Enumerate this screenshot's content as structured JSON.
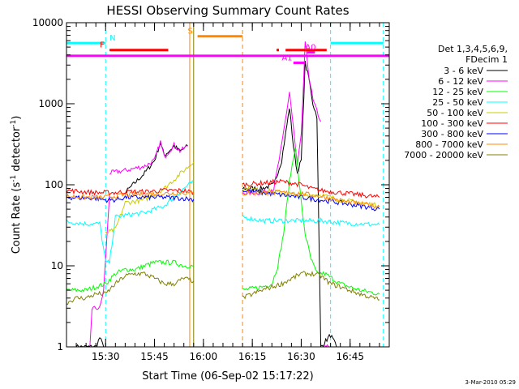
{
  "chart_data": {
    "type": "line",
    "title": "HESSI Observing Summary Count Rates",
    "xlabel": "Start Time (06-Sep-02 15:17:22)",
    "ylabel": "Count Rate (s",
    "ylabel_sup": "-1",
    "ylabel_end": " detector",
    "ylabel_sup2": "-1",
    "ylabel_close": ")",
    "yscale": "log",
    "ylim": [
      1,
      10000
    ],
    "xlim_minutes": [
      15.3,
      16.95
    ],
    "x_ticks": [
      {
        "label": "15:30",
        "value": 15.5
      },
      {
        "label": "15:45",
        "value": 15.75
      },
      {
        "label": "16:00",
        "value": 16.0
      },
      {
        "label": "16:15",
        "value": 16.25
      },
      {
        "label": "16:30",
        "value": 16.5
      },
      {
        "label": "16:45",
        "value": 16.75
      }
    ],
    "y_ticks": [
      {
        "label": "1",
        "value": 1
      },
      {
        "label": "10",
        "value": 10
      },
      {
        "label": "100",
        "value": 100
      },
      {
        "label": "1000",
        "value": 1000
      },
      {
        "label": "10000",
        "value": 10000
      }
    ],
    "legend": {
      "header1": "Det 1,3,4,5,6,9,",
      "header2": "FDecim 1",
      "placement": "right"
    },
    "series": [
      {
        "name": "3 - 6 keV",
        "color": "#000000",
        "segments": [
          [
            [
              15.35,
              1
            ],
            [
              15.45,
              1
            ],
            [
              15.47,
              1.3
            ],
            [
              15.49,
              1
            ]
          ],
          [
            [
              15.6,
              80
            ],
            [
              15.7,
              140
            ],
            [
              15.75,
              200
            ],
            [
              15.78,
              330
            ],
            [
              15.8,
              230
            ],
            [
              15.85,
              300
            ],
            [
              15.88,
              260
            ],
            [
              15.92,
              300
            ]
          ],
          [
            [
              16.2,
              90
            ],
            [
              16.3,
              90
            ],
            [
              16.36,
              100
            ],
            [
              16.4,
              200
            ],
            [
              16.44,
              900
            ],
            [
              16.46,
              300
            ],
            [
              16.48,
              140
            ],
            [
              16.5,
              200
            ],
            [
              16.52,
              3200
            ],
            [
              16.54,
              2000
            ],
            [
              16.56,
              1000
            ],
            [
              16.58,
              700
            ],
            [
              16.6,
              1
            ]
          ],
          [
            [
              16.6,
              1
            ],
            [
              16.65,
              1.4
            ],
            [
              16.68,
              1
            ]
          ]
        ]
      },
      {
        "name": "6 - 12 keV",
        "color": "#ff00ff",
        "segments": [
          [
            [
              15.42,
              1
            ],
            [
              15.43,
              3
            ],
            [
              15.47,
              3
            ],
            [
              15.49,
              5
            ],
            [
              15.52,
              75
            ]
          ],
          [
            [
              15.52,
              140
            ],
            [
              15.6,
              150
            ],
            [
              15.7,
              170
            ],
            [
              15.75,
              200
            ],
            [
              15.78,
              340
            ],
            [
              15.8,
              220
            ],
            [
              15.85,
              310
            ],
            [
              15.88,
              260
            ],
            [
              15.92,
              300
            ]
          ],
          [
            [
              16.2,
              80
            ],
            [
              16.3,
              80
            ],
            [
              16.36,
              90
            ],
            [
              16.4,
              300
            ],
            [
              16.44,
              1400
            ],
            [
              16.46,
              500
            ],
            [
              16.48,
              170
            ],
            [
              16.5,
              400
            ],
            [
              16.52,
              5500
            ],
            [
              16.54,
              2200
            ],
            [
              16.56,
              1100
            ],
            [
              16.6,
              600
            ]
          ],
          [
            [
              16.62,
              1
            ],
            [
              16.64,
              1
            ]
          ]
        ]
      },
      {
        "name": "12 - 25 keV",
        "color": "#00ff00",
        "segments": [
          [
            [
              15.3,
              5
            ],
            [
              15.35,
              5
            ],
            [
              15.4,
              5
            ],
            [
              15.45,
              5.5
            ],
            [
              15.5,
              6
            ],
            [
              15.55,
              8
            ],
            [
              15.6,
              9
            ],
            [
              15.65,
              9
            ],
            [
              15.7,
              10
            ],
            [
              15.75,
              11
            ],
            [
              15.8,
              11
            ],
            [
              15.85,
              11
            ],
            [
              15.9,
              10
            ],
            [
              15.95,
              10
            ]
          ],
          [
            [
              16.2,
              5
            ],
            [
              16.3,
              5.5
            ],
            [
              16.35,
              6
            ],
            [
              16.38,
              10
            ],
            [
              16.41,
              25
            ],
            [
              16.44,
              110
            ],
            [
              16.47,
              300
            ],
            [
              16.5,
              60
            ],
            [
              16.52,
              25
            ],
            [
              16.55,
              12
            ],
            [
              16.58,
              8
            ],
            [
              16.62,
              8
            ],
            [
              16.7,
              6
            ],
            [
              16.8,
              5
            ],
            [
              16.9,
              4.5
            ]
          ]
        ]
      },
      {
        "name": "25 - 50 keV",
        "color": "#00ffff",
        "segments": [
          [
            [
              15.3,
              35
            ],
            [
              15.4,
              33
            ],
            [
              15.47,
              33
            ],
            [
              15.5,
              11
            ],
            [
              15.52,
              11
            ],
            [
              15.55,
              40
            ],
            [
              15.6,
              42
            ],
            [
              15.7,
              45
            ],
            [
              15.8,
              55
            ],
            [
              15.9,
              90
            ],
            [
              15.95,
              110
            ]
          ],
          [
            [
              16.2,
              40
            ],
            [
              16.3,
              36
            ],
            [
              16.4,
              36
            ],
            [
              16.5,
              36
            ],
            [
              16.6,
              36
            ],
            [
              16.7,
              34
            ],
            [
              16.8,
              33
            ],
            [
              16.9,
              32
            ]
          ]
        ]
      },
      {
        "name": "50 - 100 keV",
        "color": "#cccc00",
        "segments": [
          [
            [
              15.5,
              25
            ],
            [
              15.55,
              28
            ],
            [
              15.6,
              60
            ],
            [
              15.7,
              65
            ],
            [
              15.8,
              90
            ],
            [
              15.9,
              150
            ],
            [
              15.95,
              190
            ]
          ],
          [
            [
              16.2,
              90
            ],
            [
              16.3,
              85
            ],
            [
              16.4,
              80
            ],
            [
              16.5,
              75
            ],
            [
              16.6,
              75
            ],
            [
              16.7,
              65
            ],
            [
              16.8,
              60
            ],
            [
              16.9,
              55
            ]
          ]
        ]
      },
      {
        "name": "100 - 300 keV",
        "color": "#ff0000",
        "segments": [
          [
            [
              15.3,
              85
            ],
            [
              15.45,
              80
            ],
            [
              15.5,
              80
            ],
            [
              15.55,
              80
            ],
            [
              15.6,
              82
            ],
            [
              15.7,
              82
            ],
            [
              15.8,
              85
            ],
            [
              15.9,
              85
            ],
            [
              15.95,
              80
            ]
          ],
          [
            [
              16.2,
              100
            ],
            [
              16.3,
              105
            ],
            [
              16.4,
              110
            ],
            [
              16.5,
              100
            ],
            [
              16.55,
              90
            ],
            [
              16.6,
              85
            ],
            [
              16.7,
              80
            ],
            [
              16.8,
              75
            ],
            [
              16.9,
              70
            ]
          ]
        ]
      },
      {
        "name": "300 - 800 keV",
        "color": "#0000ff",
        "segments": [
          [
            [
              15.3,
              70
            ],
            [
              15.45,
              68
            ],
            [
              15.5,
              65
            ],
            [
              15.55,
              65
            ],
            [
              15.6,
              70
            ],
            [
              15.7,
              70
            ],
            [
              15.8,
              70
            ],
            [
              15.9,
              68
            ],
            [
              15.95,
              66
            ]
          ],
          [
            [
              16.2,
              85
            ],
            [
              16.3,
              80
            ],
            [
              16.4,
              75
            ],
            [
              16.5,
              70
            ],
            [
              16.6,
              65
            ],
            [
              16.7,
              60
            ],
            [
              16.8,
              55
            ],
            [
              16.9,
              50
            ]
          ]
        ]
      },
      {
        "name": "800 - 7000 keV",
        "color": "#ff8800",
        "segments": [
          [
            [
              15.3,
              72
            ],
            [
              15.4,
              70
            ],
            [
              15.5,
              70
            ],
            [
              15.6,
              75
            ],
            [
              15.7,
              77
            ],
            [
              15.8,
              78
            ],
            [
              15.9,
              80
            ],
            [
              15.95,
              78
            ]
          ],
          [
            [
              16.2,
              78
            ],
            [
              16.3,
              80
            ],
            [
              16.4,
              80
            ],
            [
              16.5,
              78
            ],
            [
              16.6,
              72
            ],
            [
              16.7,
              64
            ],
            [
              16.8,
              58
            ],
            [
              16.9,
              54
            ]
          ]
        ]
      },
      {
        "name": "7000 - 20000 keV",
        "color": "#808000",
        "segments": [
          [
            [
              15.3,
              3.5
            ],
            [
              15.35,
              4
            ],
            [
              15.4,
              4
            ],
            [
              15.45,
              4.5
            ],
            [
              15.5,
              4.5
            ],
            [
              15.55,
              6
            ],
            [
              15.6,
              7.5
            ],
            [
              15.65,
              8
            ],
            [
              15.7,
              8
            ],
            [
              15.75,
              7
            ],
            [
              15.8,
              6
            ],
            [
              15.85,
              6
            ],
            [
              15.9,
              7
            ],
            [
              15.95,
              6.5
            ]
          ],
          [
            [
              16.2,
              4
            ],
            [
              16.3,
              5
            ],
            [
              16.4,
              6
            ],
            [
              16.5,
              8
            ],
            [
              16.55,
              8
            ],
            [
              16.6,
              7.5
            ],
            [
              16.65,
              6
            ],
            [
              16.7,
              5.5
            ],
            [
              16.8,
              4.5
            ],
            [
              16.9,
              3.8
            ]
          ]
        ]
      }
    ],
    "state_bars": [
      {
        "label": "N",
        "color": "#00ffff",
        "y": 5600,
        "x0": 15.3,
        "x1": 15.5,
        "label_x": 15.52
      },
      {
        "label": "",
        "color": "#00ffff",
        "y": 5600,
        "x0": 16.65,
        "x1": 16.92,
        "label_x": 16.65
      },
      {
        "label": "F",
        "color": "#ff0000",
        "y": 4600,
        "x0": 15.52,
        "x1": 15.82,
        "label_x": 15.47
      },
      {
        "label": "",
        "color": "#ff0000",
        "y": 4600,
        "x0": 16.42,
        "x1": 16.63,
        "label_x": 16.42
      },
      {
        "label": "S",
        "color": "#ff8800",
        "y": 6800,
        "x0": 15.97,
        "x1": 16.2,
        "label_x": 15.92
      },
      {
        "label": "A1",
        "color": "#ff00ff",
        "y": 3200,
        "x0": 16.46,
        "x1": 16.52,
        "label_x": 16.4
      },
      {
        "label": "A0",
        "color": "#ff00ff",
        "y": 4300,
        "x0": 16.53,
        "x1": 16.57,
        "label_x": 16.52
      }
    ],
    "full_line": {
      "color": "#ff00ff",
      "y": 3900
    },
    "small_marker": {
      "color": "#ff0000",
      "x": 16.38,
      "y": 4600
    },
    "vertical_lines": [
      {
        "x": 15.5,
        "color": "#00ffff",
        "style": "dashed"
      },
      {
        "x": 15.93,
        "color": "#ff8800",
        "style": "solid"
      },
      {
        "x": 15.95,
        "color": "#808000",
        "style": "solid"
      },
      {
        "x": 16.2,
        "color": "#ff8800",
        "style": "dashed"
      },
      {
        "x": 16.65,
        "color": "#00ffff",
        "style": "dashed"
      },
      {
        "x": 16.92,
        "color": "#00ffff",
        "style": "dashed"
      }
    ],
    "footer_text": "3-Mar-2010 05:29"
  }
}
